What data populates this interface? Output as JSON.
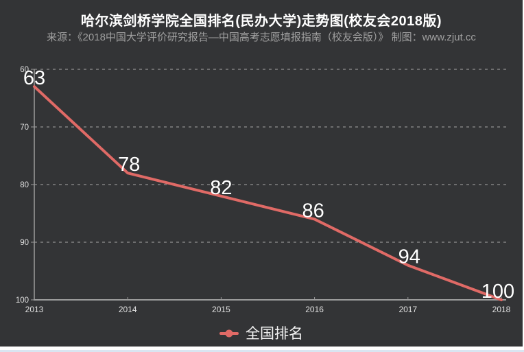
{
  "chart_data": {
    "type": "line",
    "title": "哈尔滨剑桥学院全国排名(民办大学)走势图(校友会2018版)",
    "source": "来源：《2018中国大学评价研究报告—中国高考志愿填报指南（校友会版）》 制图：www.zjut.cc",
    "x": [
      2013,
      2014,
      2015,
      2016,
      2017,
      2018
    ],
    "series": [
      {
        "name": "全国排名",
        "values": [
          63,
          78,
          82,
          86,
          94,
          100
        ]
      }
    ],
    "y_axis": {
      "inverted": true,
      "min": 60,
      "max": 100,
      "ticks": [
        60,
        70,
        80,
        90,
        100
      ]
    },
    "x_axis": {
      "ticks": [
        "2013",
        "2014",
        "2015",
        "2016",
        "2017",
        "2018"
      ]
    },
    "grid": "horizontal-dashed",
    "legend": {
      "position": "bottom-center",
      "entries": [
        "全国排名"
      ]
    },
    "colors": {
      "background": "#333436",
      "line": "#e06a66",
      "grid": "#a8a8a8",
      "axis": "#9c9c9c",
      "tick_text": "#e0e0e0",
      "data_label": "#ffffff",
      "title_text": "#ffffff",
      "subtitle_text": "#a0a0a0"
    }
  }
}
